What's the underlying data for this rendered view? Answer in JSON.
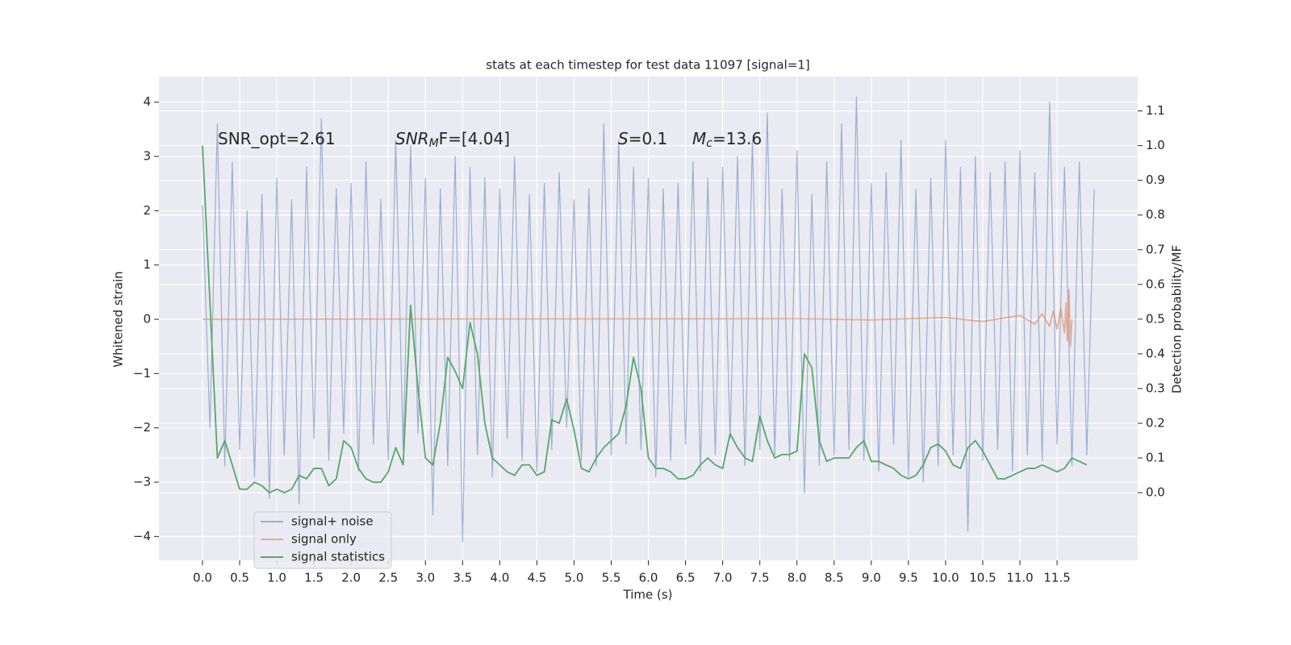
{
  "chart_data": {
    "type": "line",
    "title": "stats at each timestep for test data 11097 [signal=1]",
    "x_label": "Time (s)",
    "y_label": "Whitened strain",
    "y2_label": "Detection probability/MF",
    "xlim": [
      -0.586,
      12.585
    ],
    "ylim": [
      -4.44,
      4.47
    ],
    "y2lim": [
      -0.195,
      1.199
    ],
    "grid": true,
    "legend": "lower left",
    "xticks": [
      {
        "value": 0,
        "label": "0.0"
      },
      {
        "value": 0.5,
        "label": "0.5"
      },
      {
        "value": 1,
        "label": "1.0"
      },
      {
        "value": 1.5,
        "label": "1.5"
      },
      {
        "value": 2,
        "label": "2.0"
      },
      {
        "value": 2.5,
        "label": "2.5"
      },
      {
        "value": 3,
        "label": "3.0"
      },
      {
        "value": 3.5,
        "label": "3.5"
      },
      {
        "value": 4,
        "label": "4.0"
      },
      {
        "value": 4.5,
        "label": "4.5"
      },
      {
        "value": 5,
        "label": "5.0"
      },
      {
        "value": 5.5,
        "label": "5.5"
      },
      {
        "value": 6,
        "label": "6.0"
      },
      {
        "value": 6.5,
        "label": "6.5"
      },
      {
        "value": 7,
        "label": "7.0"
      },
      {
        "value": 7.5,
        "label": "7.5"
      },
      {
        "value": 8,
        "label": "8.0"
      },
      {
        "value": 8.5,
        "label": "8.5"
      },
      {
        "value": 9,
        "label": "9.0"
      },
      {
        "value": 9.5,
        "label": "9.5"
      },
      {
        "value": 10,
        "label": "10.0"
      },
      {
        "value": 10.5,
        "label": "10.5"
      },
      {
        "value": 11,
        "label": "11.0"
      },
      {
        "value": 11.5,
        "label": "11.5"
      }
    ],
    "yticks": [
      {
        "value": -4,
        "label": "−4"
      },
      {
        "value": -3,
        "label": "−3"
      },
      {
        "value": -2,
        "label": "−2"
      },
      {
        "value": -1,
        "label": "−1"
      },
      0,
      1,
      2,
      3,
      4
    ],
    "y2ticks": [
      {
        "value": 0,
        "label": "0.0"
      },
      0.1,
      0.2,
      0.3,
      0.4,
      0.5,
      0.6,
      0.7,
      0.8,
      0.9,
      {
        "value": 1,
        "label": "1.0"
      },
      1.1
    ],
    "annotations": [
      {
        "text": "SNR_opt=2.61"
      },
      {
        "main": "SNR",
        "sub": "M",
        "rest": "F=[4.04]"
      },
      {
        "main": "S",
        "rest": "=0.1"
      },
      {
        "main": "M",
        "sub": "c",
        "rest": "=13.6"
      }
    ],
    "x": [
      0,
      0.1,
      0.2,
      0.3,
      0.4,
      0.5,
      0.6,
      0.7,
      0.8,
      0.9,
      1,
      1.1,
      1.2,
      1.3,
      1.4,
      1.5,
      1.6,
      1.7,
      1.8,
      1.9,
      2,
      2.1,
      2.2,
      2.3,
      2.4,
      2.5,
      2.6,
      2.7,
      2.8,
      2.9,
      3,
      3.1,
      3.2,
      3.3,
      3.4,
      3.5,
      3.6,
      3.7,
      3.8,
      3.9,
      4,
      4.1,
      4.2,
      4.3,
      4.4,
      4.5,
      4.6,
      4.7,
      4.8,
      4.9,
      5,
      5.1,
      5.2,
      5.3,
      5.4,
      5.5,
      5.6,
      5.7,
      5.8,
      5.9,
      6,
      6.1,
      6.2,
      6.3,
      6.4,
      6.5,
      6.6,
      6.7,
      6.8,
      6.9,
      7,
      7.1,
      7.2,
      7.3,
      7.4,
      7.5,
      7.6,
      7.7,
      7.8,
      7.9,
      8,
      8.1,
      8.2,
      8.3,
      8.4,
      8.5,
      8.6,
      8.7,
      8.8,
      8.9,
      9,
      9.1,
      9.2,
      9.3,
      9.4,
      9.5,
      9.6,
      9.7,
      9.8,
      9.9,
      10,
      10.1,
      10.2,
      10.3,
      10.4,
      10.5,
      10.6,
      10.7,
      10.8,
      10.9,
      11,
      11.1,
      11.2,
      11.3,
      11.4,
      11.5,
      11.6,
      11.7,
      11.8,
      11.9,
      12
    ],
    "series": [
      {
        "name": "signal+ noise",
        "color": "#4c72b0",
        "values": [
          2.1,
          -2.0,
          3.6,
          -2.7,
          2.9,
          -2.4,
          2.0,
          -2.9,
          2.3,
          -3.3,
          2.6,
          -2.5,
          2.2,
          -3.4,
          2.8,
          -2.2,
          3.7,
          -2.6,
          2.4,
          -2.1,
          2.5,
          -2.8,
          2.9,
          -2.3,
          2.2,
          -2.6,
          3.3,
          -2.4,
          3.2,
          -2.1,
          2.6,
          -3.6,
          2.4,
          -2.7,
          3.0,
          -4.1,
          2.8,
          -2.5,
          2.6,
          -2.9,
          2.4,
          -2.2,
          3.0,
          -2.6,
          2.3,
          -2.8,
          2.5,
          -2.4,
          2.7,
          -2.0,
          2.2,
          -2.6,
          2.4,
          -2.7,
          3.6,
          -2.5,
          3.3,
          -2.3,
          2.8,
          -2.4,
          2.6,
          -2.9,
          2.4,
          -2.6,
          2.5,
          -2.3,
          2.9,
          -2.8,
          2.6,
          -2.5,
          2.8,
          -2.2,
          3.0,
          -2.7,
          3.3,
          -2.4,
          3.8,
          -2.5,
          2.4,
          -2.6,
          3.1,
          -3.2,
          2.3,
          -2.7,
          2.9,
          -2.5,
          3.6,
          -2.4,
          4.1,
          -2.6,
          2.5,
          -2.8,
          2.7,
          -2.3,
          3.3,
          -2.9,
          2.4,
          -3.0,
          2.6,
          -2.7,
          3.3,
          -2.5,
          2.8,
          -3.9,
          3.0,
          -2.6,
          2.7,
          -2.4,
          2.9,
          -2.8,
          3.1,
          -2.5,
          2.7,
          -2.6,
          4.0,
          -2.3,
          2.8,
          -2.7,
          2.9,
          -2.5,
          2.4
        ]
      },
      {
        "name": "signal only",
        "color": "#dd8452",
        "x": [
          0,
          8,
          9,
          10,
          10.5,
          11,
          11.2,
          11.3,
          11.4,
          11.45,
          11.5,
          11.55,
          11.6,
          11.62,
          11.64,
          11.66,
          11.68,
          11.7
        ],
        "values": [
          0,
          0.01,
          -0.01,
          0.03,
          -0.04,
          0.07,
          -0.09,
          0.1,
          -0.13,
          0.15,
          -0.18,
          0.2,
          -0.25,
          0.3,
          -0.4,
          0.55,
          -0.5,
          0
        ]
      },
      {
        "name": "signal statistics",
        "color": "#55a868",
        "axis": "y2",
        "values": [
          1.0,
          0.55,
          0.1,
          0.15,
          0.08,
          0.01,
          0.01,
          0.03,
          0.02,
          0,
          0.01,
          0,
          0.01,
          0.05,
          0.04,
          0.07,
          0.07,
          0.02,
          0.04,
          0.15,
          0.13,
          0.07,
          0.04,
          0.03,
          0.03,
          0.06,
          0.13,
          0.08,
          0.54,
          0.3,
          0.1,
          0.08,
          0.2,
          0.39,
          0.35,
          0.3,
          0.49,
          0.4,
          0.2,
          0.1,
          0.08,
          0.06,
          0.05,
          0.08,
          0.08,
          0.05,
          0.06,
          0.21,
          0.2,
          0.27,
          0.18,
          0.07,
          0.06,
          0.1,
          0.13,
          0.15,
          0.17,
          0.25,
          0.39,
          0.3,
          0.1,
          0.07,
          0.07,
          0.06,
          0.04,
          0.04,
          0.05,
          0.08,
          0.1,
          0.08,
          0.07,
          0.17,
          0.13,
          0.1,
          0.09,
          0.22,
          0.15,
          0.1,
          0.11,
          0.11,
          0.12,
          0.4,
          0.36,
          0.15,
          0.09,
          0.1,
          0.1,
          0.1,
          0.13,
          0.15,
          0.09,
          0.09,
          0.08,
          0.07,
          0.05,
          0.04,
          0.05,
          0.08,
          0.13,
          0.14,
          0.12,
          0.08,
          0.07,
          0.13,
          0.15,
          0.12,
          0.08,
          0.04,
          0.04,
          0.05,
          0.06,
          0.07,
          0.07,
          0.08,
          0.07,
          0.06,
          0.07,
          0.1,
          0.09,
          0.08,
          null
        ]
      }
    ]
  }
}
